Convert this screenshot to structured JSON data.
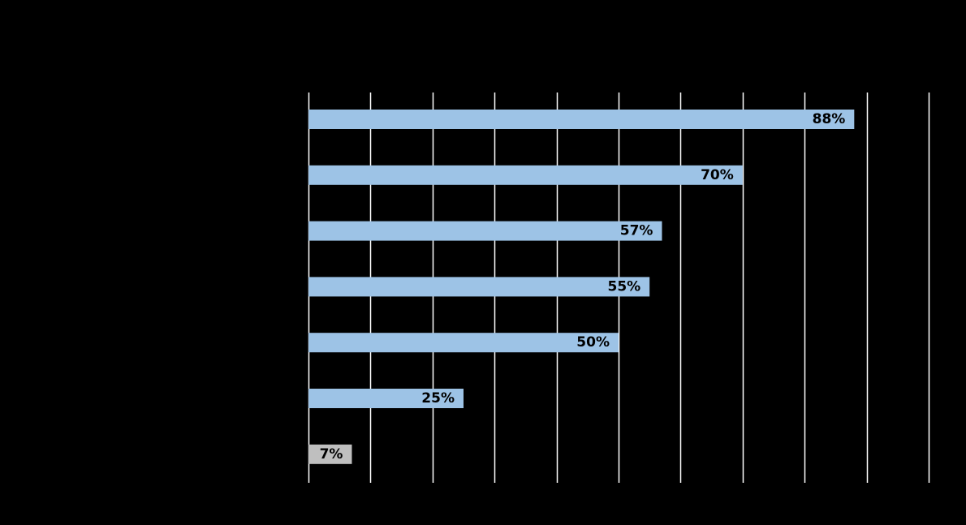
{
  "chart_data": {
    "type": "bar",
    "orientation": "horizontal",
    "title": "",
    "xlabel": "",
    "ylabel": "",
    "categories": [
      "",
      "",
      "",
      "",
      "",
      "",
      ""
    ],
    "values": [
      88,
      70,
      57,
      55,
      50,
      25,
      7
    ],
    "data_labels": [
      "88%",
      "70%",
      "57%",
      "55%",
      "50%",
      "25%",
      "7%"
    ],
    "xlim": [
      0,
      100
    ],
    "x_tick_step": 10,
    "grid": true,
    "legend": "none",
    "colors": {
      "background": "#000000",
      "gridline": "#ffffff",
      "bar_default": "#9dc3e6",
      "bar_highlight": "#bfbfbf",
      "label_text": "#000000"
    },
    "bar_colors": [
      "#9dc3e6",
      "#9dc3e6",
      "#9dc3e6",
      "#9dc3e6",
      "#9dc3e6",
      "#9dc3e6",
      "#bfbfbf"
    ]
  }
}
